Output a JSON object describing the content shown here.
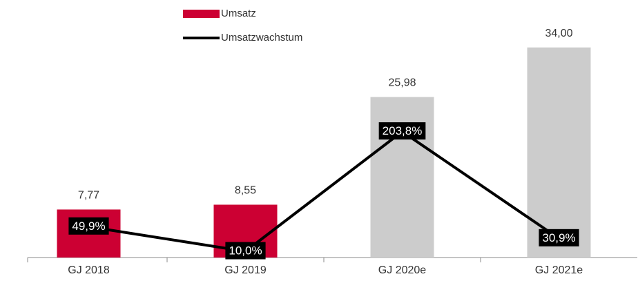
{
  "chart_data": {
    "type": "bar",
    "categories": [
      "GJ 2018",
      "GJ 2019",
      "GJ 2020e",
      "GJ 2021e"
    ],
    "series": [
      {
        "name": "Umsatz",
        "type": "bar",
        "color": "#cc0033",
        "colors": [
          "#cc0033",
          "#cc0033",
          "#cccccc",
          "#cccccc"
        ],
        "values": [
          7.77,
          8.55,
          25.98,
          34.0
        ],
        "value_labels": [
          "7,77",
          "8,55",
          "25,98",
          "34,00"
        ]
      },
      {
        "name": "Umsatzwachstum",
        "type": "line",
        "axis": "y2",
        "color": "#000000",
        "values": [
          49.9,
          10.0,
          203.8,
          30.9
        ],
        "value_labels": [
          "49,9%",
          "10,0%",
          "203,8%",
          "30,9%"
        ]
      }
    ],
    "ylim": [
      0,
      40
    ],
    "y2lim": [
      0,
      400
    ],
    "grid": false,
    "legend": "top-left"
  }
}
